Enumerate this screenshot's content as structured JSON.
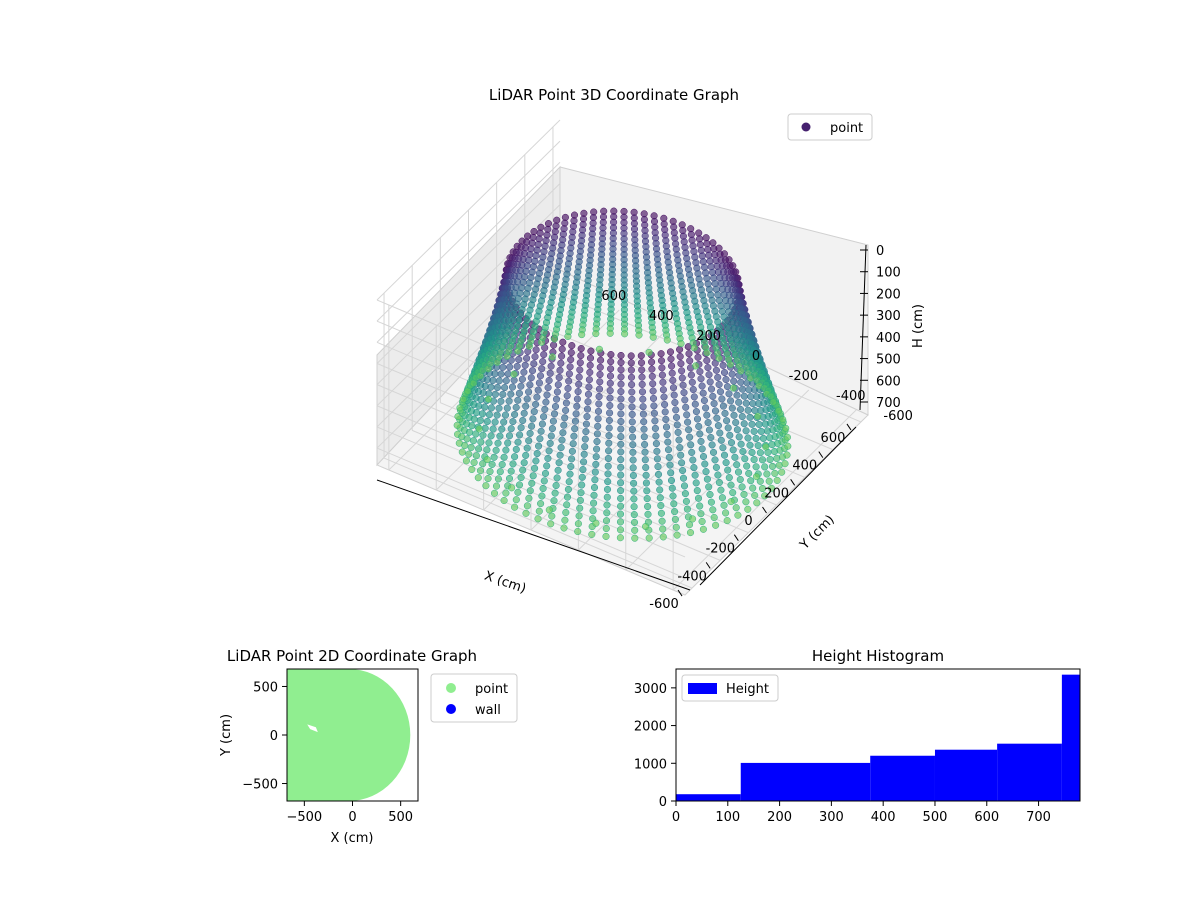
{
  "chart_data": [
    {
      "type": "scatter3d",
      "title": "LiDAR Point 3D Coordinate Graph",
      "xlabel": "X (cm)",
      "ylabel": "Y (cm)",
      "zlabel": "H (cm)",
      "xlim": [
        -650,
        650
      ],
      "ylim": [
        -650,
        650
      ],
      "zlim": [
        0,
        780
      ],
      "z_inverted": true,
      "x_ticks": [
        -600,
        -400,
        -200,
        0,
        200,
        400,
        600
      ],
      "y_ticks": [
        -600,
        -400,
        -200,
        0,
        200,
        400,
        600
      ],
      "z_ticks": [
        0,
        100,
        200,
        300,
        400,
        500,
        600,
        700
      ],
      "colormap": "viridis",
      "legend": {
        "position": "top-right",
        "entries": [
          {
            "label": "point",
            "color": "#46216f"
          }
        ]
      },
      "grid": true
    },
    {
      "type": "scatter",
      "title": "LiDAR Point 2D Coordinate Graph",
      "xlabel": "X (cm)",
      "ylabel": "Y (cm)",
      "xlim": [
        -680,
        680
      ],
      "ylim": [
        -680,
        680
      ],
      "x_ticks": [
        -500,
        0,
        500
      ],
      "y_ticks": [
        -500,
        0,
        500
      ],
      "series": [
        {
          "name": "point",
          "color": "#90ee90"
        },
        {
          "name": "wall",
          "color": "#0000ff"
        }
      ],
      "legend": {
        "position": "outside-right"
      }
    },
    {
      "type": "histogram",
      "title": "Height Histogram",
      "xlim": [
        0,
        780
      ],
      "ylim": [
        0,
        3500
      ],
      "x_ticks": [
        0,
        100,
        200,
        300,
        400,
        500,
        600,
        700
      ],
      "y_ticks": [
        0,
        1000,
        2000,
        3000
      ],
      "bins": [
        {
          "start": 0,
          "end": 125,
          "count": 180
        },
        {
          "start": 125,
          "end": 375,
          "count": 1010
        },
        {
          "start": 375,
          "end": 500,
          "count": 1200
        },
        {
          "start": 500,
          "end": 620,
          "count": 1360
        },
        {
          "start": 620,
          "end": 745,
          "count": 1520
        },
        {
          "start": 745,
          "end": 780,
          "count": 3350
        }
      ],
      "series": [
        {
          "name": "Height",
          "color": "#0000ff"
        }
      ],
      "legend": {
        "position": "top-left"
      }
    }
  ]
}
